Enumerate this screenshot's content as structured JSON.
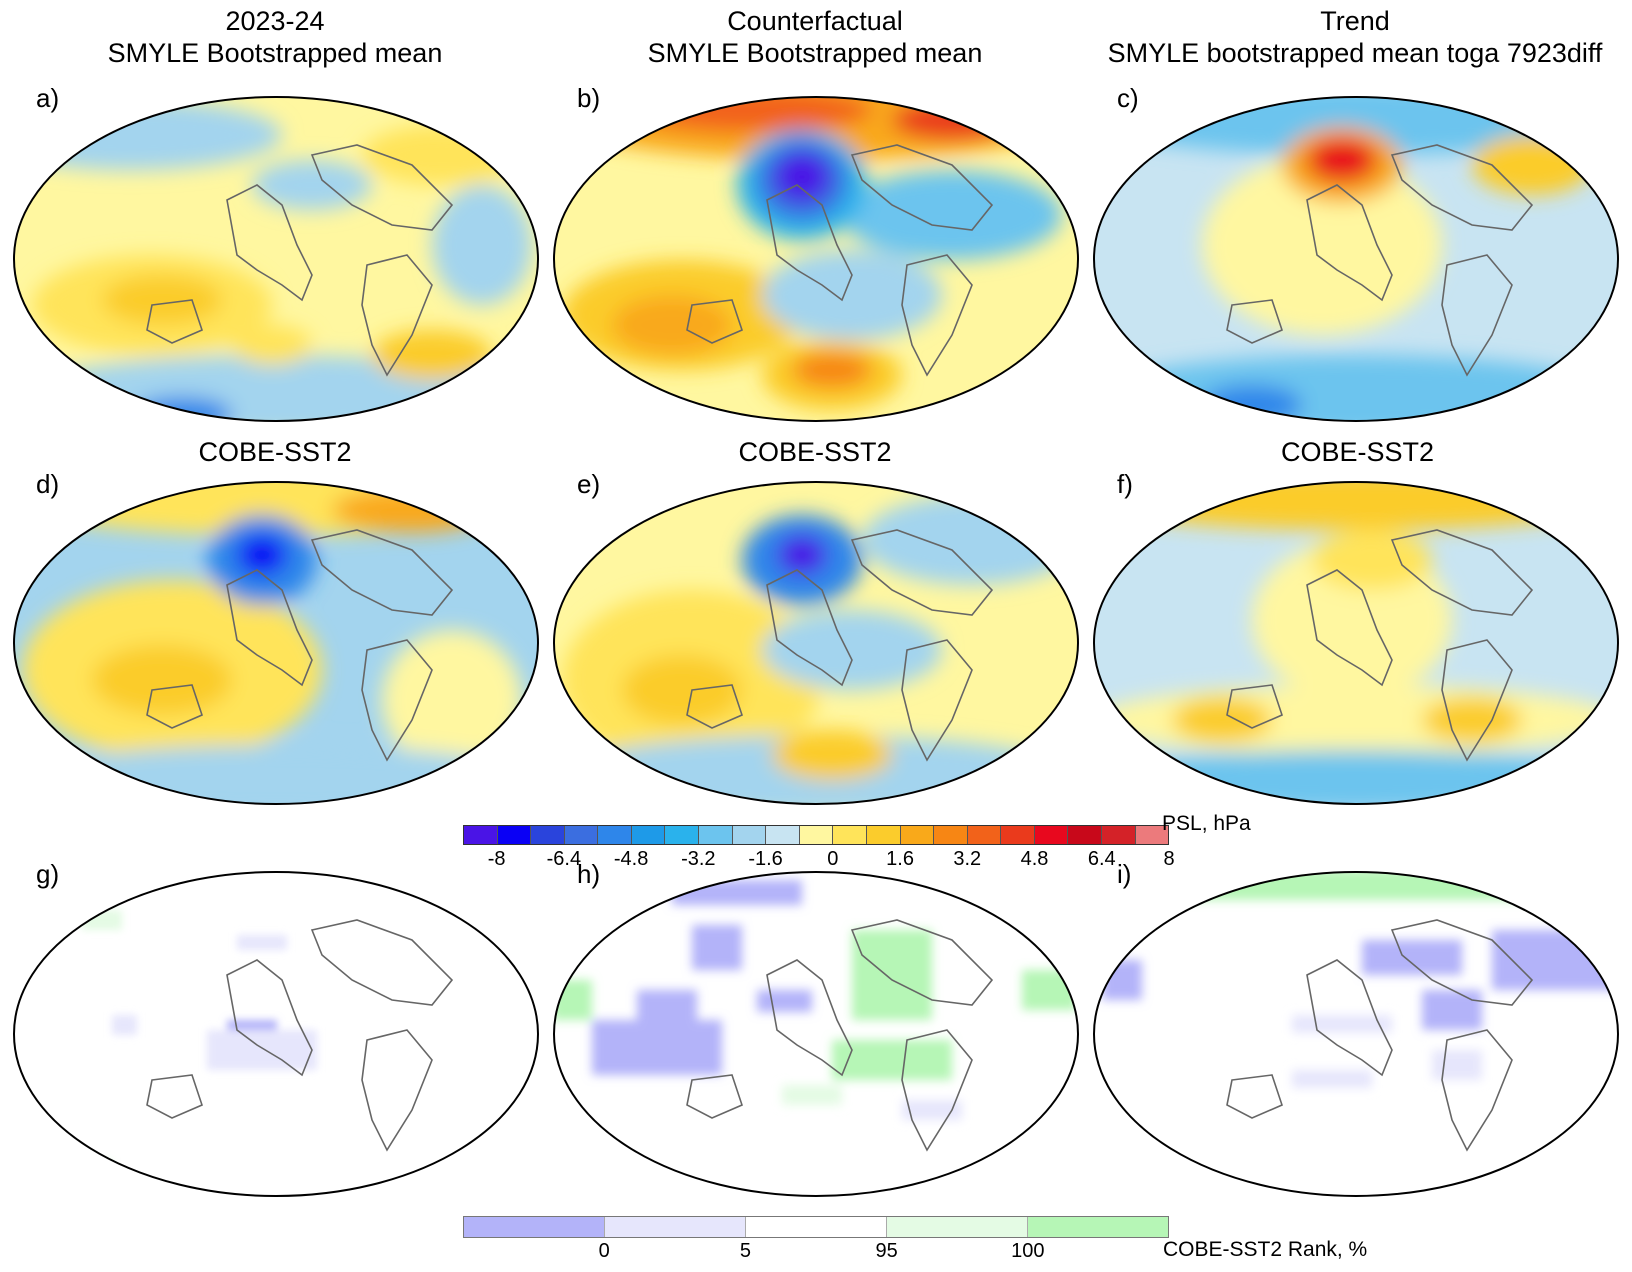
{
  "column_titles": [
    {
      "line1": "2023-24",
      "line2": "SMYLE Bootstrapped mean"
    },
    {
      "line1": "Counterfactual",
      "line2": "SMYLE Bootstrapped mean"
    },
    {
      "line1": "Trend",
      "line2": "SMYLE bootstrapped mean toga 7923diff"
    }
  ],
  "row2_titles": [
    "COBE-SST2",
    "COBE-SST2",
    "COBE-SST2"
  ],
  "panel_labels": [
    "a)",
    "b)",
    "c)",
    "d)",
    "e)",
    "f)",
    "g)",
    "h)",
    "i)"
  ],
  "psl_colorbar": {
    "title": "PSL, hPa",
    "tick_labels": [
      "-8",
      "-6.4",
      "-4.8",
      "-3.2",
      "-1.6",
      "0",
      "1.6",
      "3.2",
      "4.8",
      "6.4",
      "8"
    ],
    "colors": [
      "#4a14e6",
      "#0a00f5",
      "#2a44dc",
      "#3b6ee0",
      "#2e86ea",
      "#1e9ae8",
      "#2ab2ec",
      "#6cc4ee",
      "#a3d4ee",
      "#c8e4f2",
      "#fff7a0",
      "#ffe45a",
      "#fbcc2c",
      "#f9a91a",
      "#f78614",
      "#f2621a",
      "#ea3a1c",
      "#e8081e",
      "#c8081a",
      "#d42228",
      "#ec7a7c"
    ]
  },
  "rank_colorbar": {
    "title": "COBE-SST2 Rank, %",
    "tick_labels": [
      "0",
      "5",
      "95",
      "100"
    ],
    "colors": [
      "#b3b3f9",
      "#e6e6fc",
      "#ffffff",
      "#e4fbe4",
      "#b6f6b6"
    ]
  }
}
